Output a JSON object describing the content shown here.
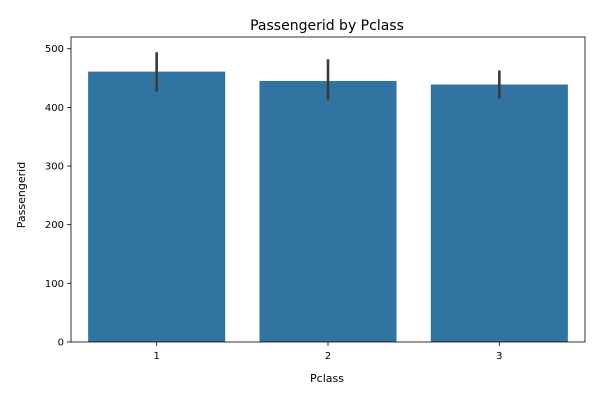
{
  "chart_data": {
    "type": "bar",
    "title": "Passengerid by Pclass",
    "xlabel": "Pclass",
    "ylabel": "Passengerid",
    "categories": [
      "1",
      "2",
      "3"
    ],
    "values": [
      461,
      445,
      439
    ],
    "error_low": [
      427,
      412,
      415
    ],
    "error_high": [
      494,
      482,
      463
    ],
    "ylim": [
      0,
      520
    ],
    "yticks": [
      0,
      100,
      200,
      300,
      400,
      500
    ],
    "grid": false,
    "bar_color": "#3274a1",
    "error_color": "#3a3a3a"
  }
}
